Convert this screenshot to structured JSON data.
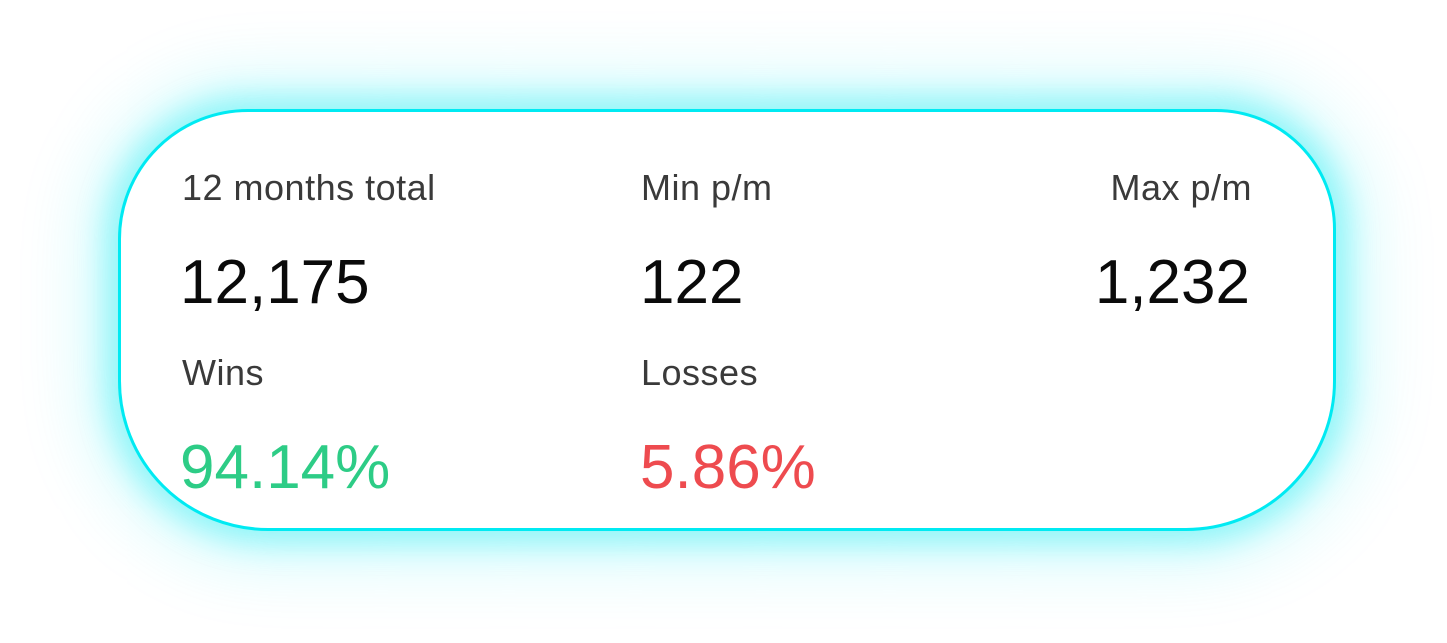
{
  "stats": {
    "total": {
      "label": "12 months total",
      "value": "12,175"
    },
    "min": {
      "label": "Min p/m",
      "value": "122"
    },
    "max": {
      "label": "Max p/m",
      "value": "1,232"
    },
    "wins": {
      "label": "Wins",
      "value": "94.14%"
    },
    "losses": {
      "label": "Losses",
      "value": "5.86%"
    }
  },
  "colors": {
    "border": "#00eaf2",
    "label": "#3a3a3a",
    "value": "#0a0a0a",
    "wins": "#2dcc86",
    "losses": "#ee4b4f"
  }
}
